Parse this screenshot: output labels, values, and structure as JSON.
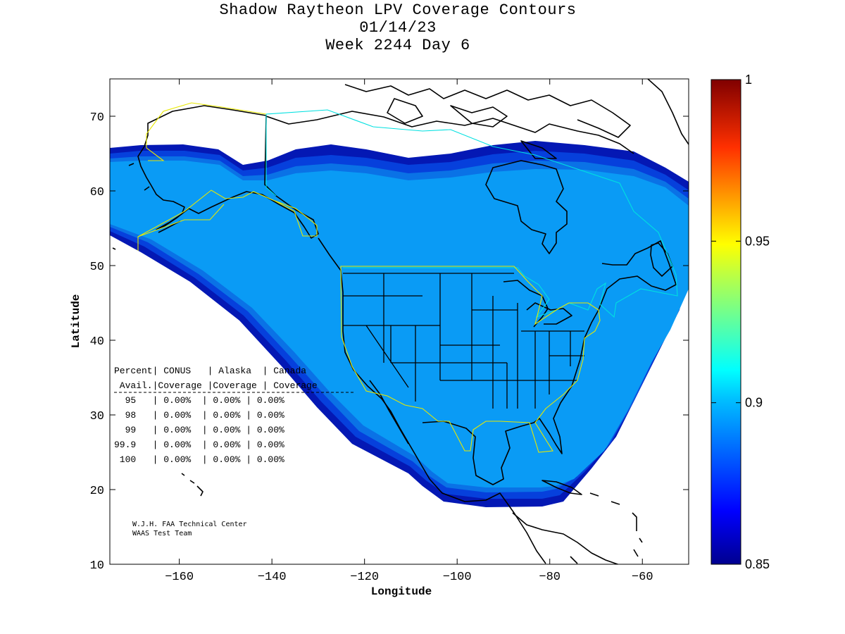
{
  "title": [
    "Shadow Raytheon LPV Coverage Contours",
    "01/14/23",
    "Week 2244 Day 6"
  ],
  "map": {
    "xlabel": "Longitude",
    "ylabel": "Latitude",
    "xlim": [
      -175,
      -50
    ],
    "ylim": [
      10,
      75
    ],
    "x_ticks": [
      -160,
      -140,
      -120,
      -100,
      -80,
      -60
    ],
    "y_ticks": [
      10,
      20,
      30,
      40,
      50,
      60,
      70
    ]
  },
  "colorbar": {
    "min": 0.85,
    "max": 1,
    "ticks": [
      0.85,
      0.9,
      0.95,
      1
    ],
    "tick_labels": [
      "0.85",
      "0.9",
      "0.95",
      "1"
    ]
  },
  "colors": {
    "coverage_fill": "#0a9bf5",
    "coverage_mid": "#0a72e6",
    "coverage_edge": "#0640dc",
    "coverage_outer": "#0418b4",
    "service_boundary_yellow": "#e8e800",
    "service_boundary_cyan": "#00e0e0"
  },
  "stats_table": {
    "header1": "Percent| CONUS   | Alaska  | Canada",
    "header2": " Avail.|Coverage |Coverage | Coverage",
    "rows": [
      "  95   | 0.00%  | 0.00% | 0.00%",
      "  98   | 0.00%  | 0.00% | 0.00%",
      "  99   | 0.00%  | 0.00% | 0.00%",
      "99.9   | 0.00%  | 0.00% | 0.00%",
      " 100   | 0.00%  | 0.00% | 0.00%"
    ]
  },
  "credit": [
    "W.J.H. FAA Technical Center",
    "WAAS Test Team"
  ]
}
